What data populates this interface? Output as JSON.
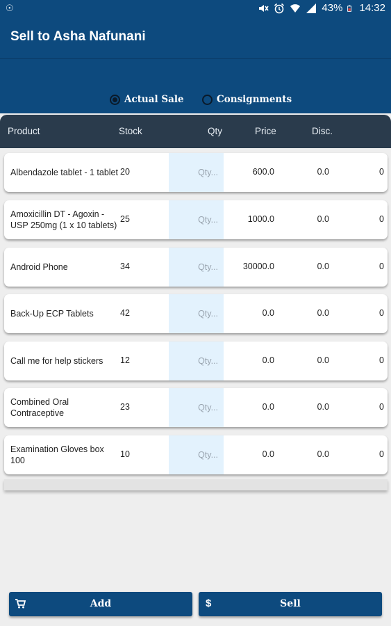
{
  "status_bar": {
    "battery": "43%",
    "time": "14:32",
    "icons": [
      "app-notification-icon",
      "mute-icon",
      "alarm-icon",
      "wifi-icon",
      "signal-icon",
      "battery-icon"
    ]
  },
  "app_bar": {
    "title": "Sell to Asha Nafunani"
  },
  "sale_type": {
    "actual_label": "Actual Sale",
    "consign_label": "Consignments",
    "selected": "Actual Sale"
  },
  "table": {
    "headers": {
      "product": "Product",
      "stock": "Stock",
      "qty": "Qty",
      "price": "Price",
      "disc": "Disc."
    },
    "qty_placeholder": "Qty...",
    "rows": [
      {
        "product": "Albendazole tablet - 1 tablet",
        "stock": "20",
        "price": "600.0",
        "disc": "0.0",
        "total": "0"
      },
      {
        "product": "Amoxicillin DT - Agoxin - USP 250mg (1 x 10 tablets)",
        "stock": "25",
        "price": "1000.0",
        "disc": "0.0",
        "total": "0"
      },
      {
        "product": "Android Phone",
        "stock": "34",
        "price": "30000.0",
        "disc": "0.0",
        "total": "0"
      },
      {
        "product": "Back-Up ECP Tablets",
        "stock": "42",
        "price": "0.0",
        "disc": "0.0",
        "total": "0"
      },
      {
        "product": "Call me for help stickers",
        "stock": "12",
        "price": "0.0",
        "disc": "0.0",
        "total": "0"
      },
      {
        "product": "Combined Oral Contraceptive",
        "stock": "23",
        "price": "0.0",
        "disc": "0.0",
        "total": "0"
      },
      {
        "product": "Examination Gloves box 100",
        "stock": "10",
        "price": "0.0",
        "disc": "0.0",
        "total": "0"
      }
    ]
  },
  "buttons": {
    "add_label": "Add",
    "add_icon": "cart-icon",
    "sell_label": "Sell",
    "sell_icon": "dollar-icon",
    "sell_symbol": "$"
  },
  "colors": {
    "primary": "#0d4a7e",
    "table_header": "#2a3b4c",
    "qty_cell": "#e3f2fd"
  }
}
